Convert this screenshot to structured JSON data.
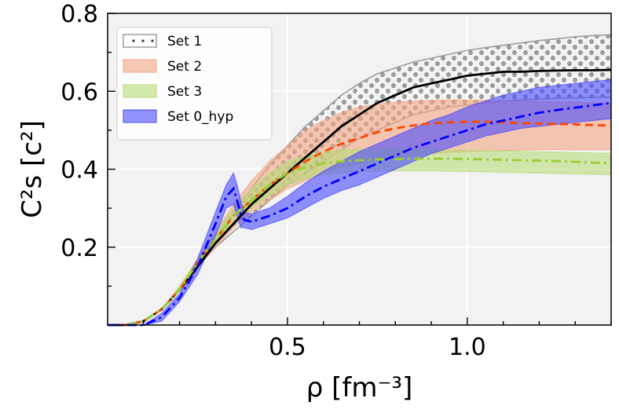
{
  "chart_data": {
    "type": "line",
    "xlabel": "ρ [fm⁻³]",
    "ylabel": "C²s [c²]",
    "xlim": [
      0.0,
      1.4
    ],
    "ylim": [
      0.0,
      0.8
    ],
    "x_ticks": [
      {
        "value": 0.5,
        "label": "0.5"
      },
      {
        "value": 1.0,
        "label": "1.0"
      }
    ],
    "y_ticks": [
      {
        "value": 0.2,
        "label": "0.2"
      },
      {
        "value": 0.4,
        "label": "0.4"
      },
      {
        "value": 0.6,
        "label": "0.6"
      },
      {
        "value": 0.8,
        "label": "0.8"
      }
    ],
    "grid": true,
    "background": "#f2f2f2",
    "legend_position": "top-left",
    "series": [
      {
        "name": "Set 1",
        "style": "dotted-band",
        "band_color": "#9e9e9e",
        "line_color": "#000000",
        "line_style": "solid",
        "x": [
          0.0,
          0.05,
          0.1,
          0.15,
          0.2,
          0.25,
          0.3,
          0.35,
          0.4,
          0.45,
          0.5,
          0.55,
          0.6,
          0.65,
          0.7,
          0.75,
          0.8,
          0.85,
          0.9,
          0.95,
          1.0,
          1.05,
          1.1,
          1.15,
          1.2,
          1.25,
          1.3,
          1.35,
          1.4
        ],
        "center": [
          0.0,
          0.0,
          0.01,
          0.04,
          0.09,
          0.15,
          0.21,
          0.26,
          0.31,
          0.35,
          0.39,
          0.43,
          0.47,
          0.51,
          0.54,
          0.57,
          0.59,
          0.61,
          0.62,
          0.63,
          0.64,
          0.645,
          0.65,
          0.65,
          0.652,
          0.653,
          0.654,
          0.654,
          0.655
        ],
        "lower": [
          0.0,
          0.0,
          0.01,
          0.04,
          0.09,
          0.15,
          0.2,
          0.24,
          0.28,
          0.32,
          0.36,
          0.39,
          0.42,
          0.45,
          0.48,
          0.5,
          0.52,
          0.54,
          0.55,
          0.56,
          0.565,
          0.57,
          0.575,
          0.578,
          0.58,
          0.582,
          0.583,
          0.584,
          0.585
        ],
        "upper": [
          0.0,
          0.0,
          0.01,
          0.04,
          0.09,
          0.16,
          0.23,
          0.29,
          0.35,
          0.41,
          0.46,
          0.51,
          0.55,
          0.59,
          0.62,
          0.645,
          0.66,
          0.675,
          0.685,
          0.695,
          0.705,
          0.712,
          0.718,
          0.724,
          0.73,
          0.735,
          0.74,
          0.743,
          0.745
        ]
      },
      {
        "name": "Set 2",
        "style": "band",
        "band_color": "#f4a582",
        "line_color": "#ff4500",
        "line_style": "dashed",
        "x": [
          0.0,
          0.05,
          0.1,
          0.15,
          0.2,
          0.25,
          0.3,
          0.35,
          0.4,
          0.45,
          0.5,
          0.55,
          0.6,
          0.65,
          0.7,
          0.75,
          0.8,
          0.85,
          0.9,
          0.95,
          1.0,
          1.05,
          1.1,
          1.15,
          1.2,
          1.25,
          1.3,
          1.35,
          1.4
        ],
        "center": [
          0.0,
          0.0,
          0.01,
          0.04,
          0.09,
          0.16,
          0.22,
          0.28,
          0.32,
          0.36,
          0.39,
          0.42,
          0.445,
          0.465,
          0.48,
          0.495,
          0.505,
          0.512,
          0.518,
          0.52,
          0.522,
          0.522,
          0.52,
          0.518,
          0.517,
          0.516,
          0.515,
          0.513,
          0.512
        ],
        "lower": [
          0.0,
          0.0,
          0.01,
          0.04,
          0.09,
          0.15,
          0.2,
          0.25,
          0.29,
          0.32,
          0.35,
          0.37,
          0.39,
          0.405,
          0.415,
          0.425,
          0.43,
          0.435,
          0.44,
          0.443,
          0.445,
          0.447,
          0.448,
          0.449,
          0.45,
          0.45,
          0.45,
          0.45,
          0.45
        ],
        "upper": [
          0.0,
          0.0,
          0.01,
          0.04,
          0.1,
          0.17,
          0.24,
          0.31,
          0.37,
          0.42,
          0.46,
          0.5,
          0.525,
          0.545,
          0.56,
          0.567,
          0.572,
          0.575,
          0.577,
          0.578,
          0.578,
          0.577,
          0.576,
          0.575,
          0.574,
          0.573,
          0.572,
          0.571,
          0.57
        ]
      },
      {
        "name": "Set 3",
        "style": "band",
        "band_color": "#b8dc7a",
        "line_color": "#9acd32",
        "line_style": "dashdot",
        "x": [
          0.0,
          0.05,
          0.1,
          0.15,
          0.2,
          0.25,
          0.3,
          0.35,
          0.4,
          0.45,
          0.5,
          0.55,
          0.6,
          0.65,
          0.7,
          0.75,
          0.8,
          0.85,
          0.9,
          0.95,
          1.0,
          1.05,
          1.1,
          1.15,
          1.2,
          1.25,
          1.3,
          1.35,
          1.4
        ],
        "center": [
          0.0,
          0.0,
          0.01,
          0.04,
          0.09,
          0.16,
          0.22,
          0.28,
          0.32,
          0.36,
          0.39,
          0.405,
          0.415,
          0.42,
          0.423,
          0.425,
          0.426,
          0.427,
          0.427,
          0.427,
          0.426,
          0.425,
          0.424,
          0.423,
          0.422,
          0.421,
          0.419,
          0.417,
          0.415
        ],
        "lower": [
          0.0,
          0.0,
          0.01,
          0.04,
          0.09,
          0.15,
          0.21,
          0.26,
          0.3,
          0.33,
          0.36,
          0.375,
          0.385,
          0.39,
          0.393,
          0.395,
          0.396,
          0.396,
          0.396,
          0.395,
          0.394,
          0.393,
          0.392,
          0.391,
          0.39,
          0.389,
          0.388,
          0.387,
          0.386
        ],
        "upper": [
          0.0,
          0.0,
          0.01,
          0.04,
          0.1,
          0.17,
          0.24,
          0.3,
          0.35,
          0.39,
          0.42,
          0.435,
          0.445,
          0.45,
          0.452,
          0.453,
          0.453,
          0.452,
          0.451,
          0.45,
          0.449,
          0.448,
          0.447,
          0.446,
          0.445,
          0.444,
          0.443,
          0.442,
          0.441
        ]
      },
      {
        "name": "Set 0_hyp",
        "style": "band",
        "band_color": "#4b4bff",
        "line_color": "#0000ff",
        "line_style": "dashdot",
        "x": [
          0.0,
          0.05,
          0.1,
          0.15,
          0.2,
          0.25,
          0.3,
          0.33,
          0.35,
          0.36,
          0.37,
          0.38,
          0.4,
          0.45,
          0.5,
          0.55,
          0.6,
          0.65,
          0.7,
          0.75,
          0.8,
          0.85,
          0.9,
          0.95,
          1.0,
          1.05,
          1.1,
          1.15,
          1.2,
          1.25,
          1.3,
          1.35,
          1.4
        ],
        "center": [
          0.0,
          0.0,
          0.0,
          0.02,
          0.07,
          0.15,
          0.26,
          0.33,
          0.35,
          0.32,
          0.285,
          0.27,
          0.265,
          0.28,
          0.3,
          0.33,
          0.355,
          0.375,
          0.395,
          0.415,
          0.435,
          0.455,
          0.47,
          0.485,
          0.5,
          0.515,
          0.525,
          0.535,
          0.545,
          0.552,
          0.558,
          0.564,
          0.57
        ],
        "lower": [
          0.0,
          0.0,
          0.0,
          0.01,
          0.06,
          0.13,
          0.23,
          0.3,
          0.31,
          0.28,
          0.25,
          0.25,
          0.245,
          0.26,
          0.275,
          0.3,
          0.325,
          0.345,
          0.36,
          0.38,
          0.4,
          0.42,
          0.44,
          0.455,
          0.47,
          0.485,
          0.495,
          0.505,
          0.51,
          0.515,
          0.52,
          0.525,
          0.53
        ],
        "upper": [
          0.0,
          0.0,
          0.0,
          0.03,
          0.08,
          0.17,
          0.29,
          0.36,
          0.39,
          0.36,
          0.32,
          0.29,
          0.285,
          0.3,
          0.33,
          0.365,
          0.395,
          0.42,
          0.445,
          0.465,
          0.485,
          0.505,
          0.525,
          0.54,
          0.56,
          0.575,
          0.59,
          0.6,
          0.61,
          0.615,
          0.62,
          0.625,
          0.63
        ]
      }
    ]
  }
}
